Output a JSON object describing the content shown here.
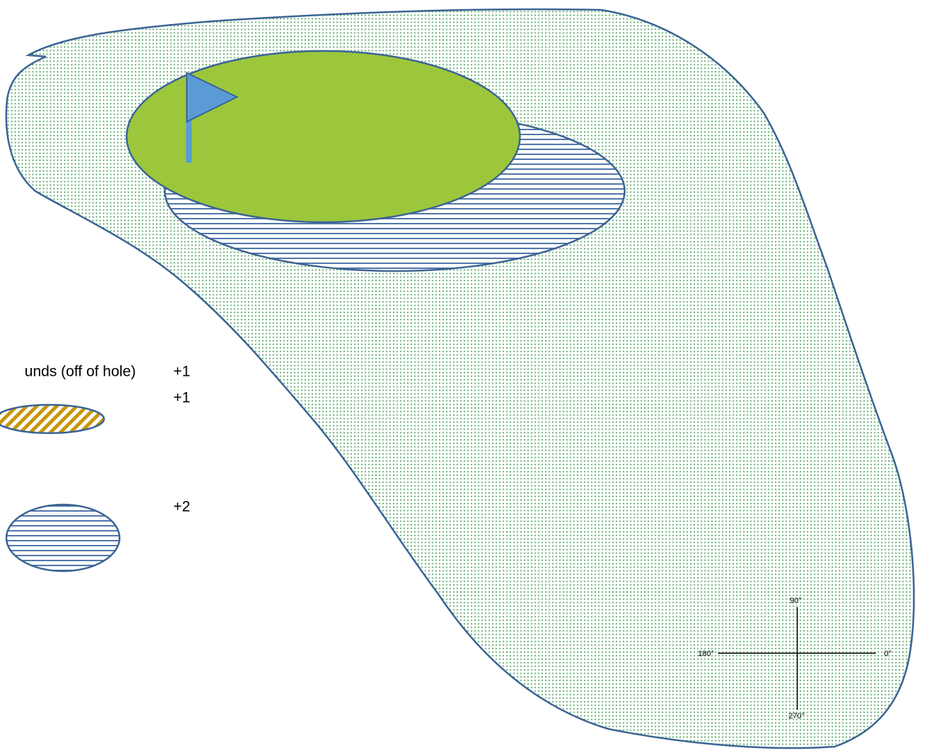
{
  "legend": {
    "items": [
      {
        "label": "unds (off of hole)",
        "penalty": "+1"
      },
      {
        "penalty": "+1"
      },
      {
        "penalty": "+2"
      }
    ]
  },
  "compass": {
    "north": "90°",
    "west": "180°",
    "east": "0°",
    "south": "270°"
  }
}
